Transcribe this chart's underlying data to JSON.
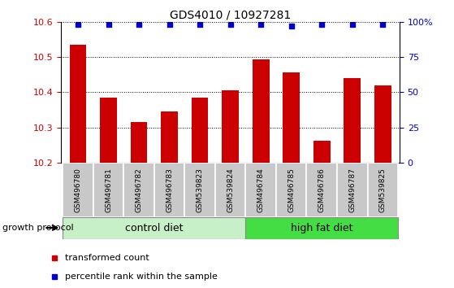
{
  "title": "GDS4010 / 10927281",
  "samples": [
    "GSM496780",
    "GSM496781",
    "GSM496782",
    "GSM496783",
    "GSM539823",
    "GSM539824",
    "GSM496784",
    "GSM496785",
    "GSM496786",
    "GSM496787",
    "GSM539825"
  ],
  "bar_values": [
    10.535,
    10.385,
    10.315,
    10.345,
    10.385,
    10.405,
    10.492,
    10.455,
    10.262,
    10.44,
    10.42
  ],
  "percentile_values": [
    98,
    98,
    98,
    98,
    98,
    98,
    98,
    97,
    98,
    98,
    98
  ],
  "bar_color": "#cc0000",
  "dot_color": "#0000cc",
  "ylim_left": [
    10.2,
    10.6
  ],
  "ylim_right": [
    0,
    100
  ],
  "yticks_left": [
    10.2,
    10.3,
    10.4,
    10.5,
    10.6
  ],
  "yticks_right": [
    0,
    25,
    50,
    75,
    100
  ],
  "groups": [
    {
      "label": "control diet",
      "start": 0,
      "end": 5,
      "color": "#c8f0c8"
    },
    {
      "label": "high fat diet",
      "start": 6,
      "end": 10,
      "color": "#44dd44"
    }
  ],
  "group_label": "growth protocol",
  "legend_items": [
    {
      "label": "transformed count",
      "color": "#cc0000"
    },
    {
      "label": "percentile rank within the sample",
      "color": "#0000cc"
    }
  ],
  "bar_width": 0.55,
  "tick_label_color_left": "#cc0000",
  "tick_label_color_right": "#0000cc",
  "grid_style": "dotted",
  "grid_color": "black",
  "sample_box_color": "#c8c8c8",
  "title_fontsize": 10,
  "ytick_fontsize": 8,
  "sample_fontsize": 6.5,
  "group_fontsize": 9,
  "legend_fontsize": 8
}
